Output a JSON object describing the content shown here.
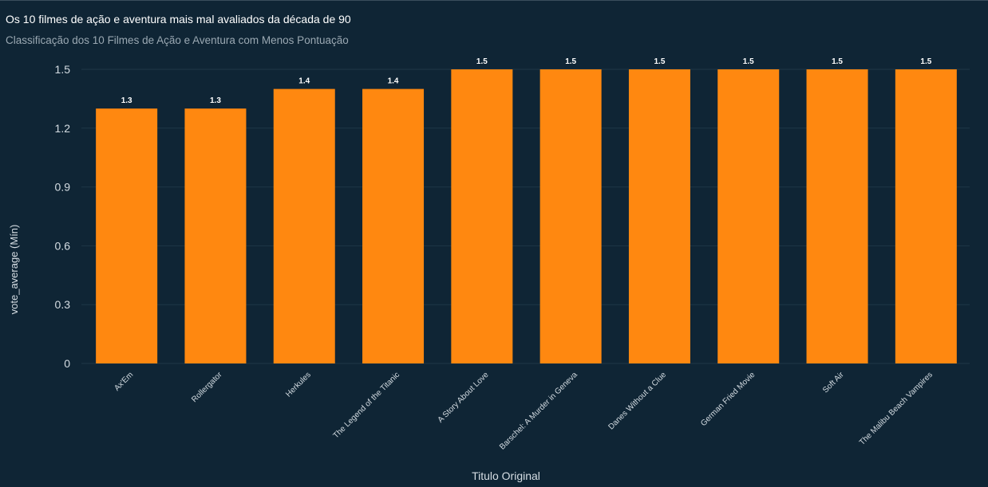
{
  "chart_title": "Os 10 filmes de ação e aventura mais mal avaliados da década de 90",
  "chart_subtitle": "Classificação dos 10 Filmes de Ação e Aventura com Menos Pontuação",
  "colors": {
    "background": "#0f2535",
    "bar": "#ff8810",
    "grid": "#1f3746",
    "axis_text": "#d5dde3",
    "label_text": "#ffffff"
  },
  "chart_data": {
    "type": "bar",
    "categories": [
      "Ax'Em",
      "Rollergator",
      "Herkules",
      "The Legend of the Titanic",
      "A Story About Love",
      "Barschel: A Murder in Geneva",
      "Danes Without a Clue",
      "German Fried Movie",
      "Soft Air",
      "The Malibu Beach Vampires"
    ],
    "values": [
      1.3,
      1.3,
      1.4,
      1.4,
      1.5,
      1.5,
      1.5,
      1.5,
      1.5,
      1.5
    ],
    "data_labels": [
      "1.3",
      "1.3",
      "1.4",
      "1.4",
      "1.5",
      "1.5",
      "1.5",
      "1.5",
      "1.5",
      "1.5"
    ],
    "xlabel": "Titulo Original",
    "ylabel": "vote_average (Mín)",
    "ylim": [
      0,
      1.5
    ],
    "yticks": [
      0,
      0.3,
      0.6,
      0.9,
      1.2,
      1.5
    ],
    "ytick_labels": [
      "0",
      "0.3",
      "0.6",
      "0.9",
      "1.2",
      "1.5"
    ],
    "grid": true
  }
}
